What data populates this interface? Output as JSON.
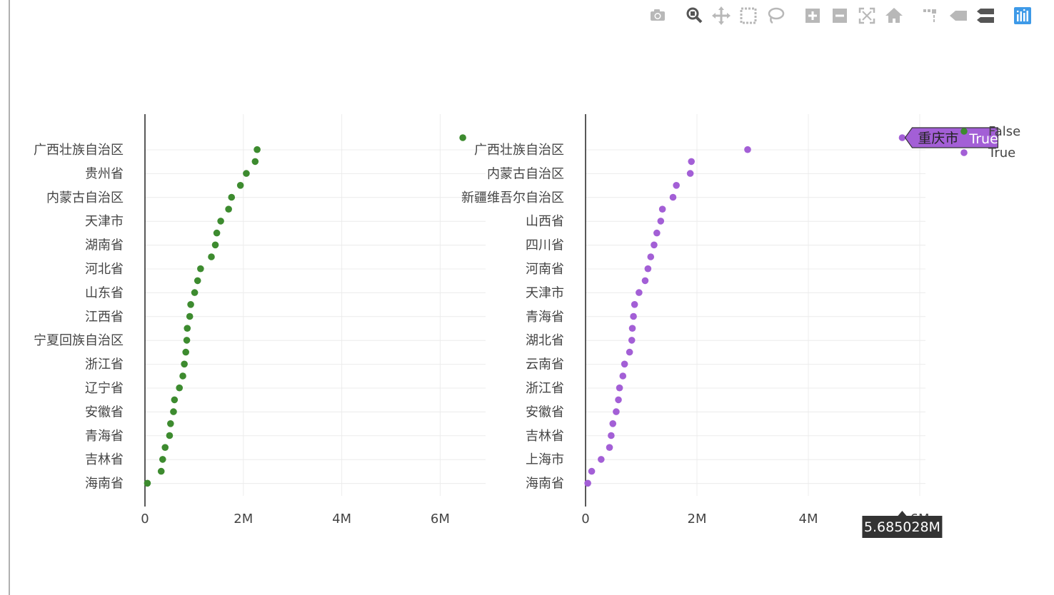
{
  "modebar": {
    "buttons": [
      {
        "name": "camera-icon",
        "title": "Download plot as a png"
      },
      {
        "name": "zoom-icon",
        "title": "Zoom"
      },
      {
        "name": "pan-icon",
        "title": "Pan"
      },
      {
        "name": "box-select-icon",
        "title": "Box Select"
      },
      {
        "name": "lasso-select-icon",
        "title": "Lasso Select"
      },
      {
        "name": "zoom-in-icon",
        "title": "Zoom in"
      },
      {
        "name": "zoom-out-icon",
        "title": "Zoom out"
      },
      {
        "name": "autoscale-icon",
        "title": "Autoscale"
      },
      {
        "name": "reset-axes-icon",
        "title": "Reset axes"
      },
      {
        "name": "toggle-spike-lines-icon",
        "title": "Toggle Spike Lines"
      },
      {
        "name": "hover-closest-icon",
        "title": "Show closest data on hover"
      },
      {
        "name": "hover-compare-icon",
        "title": "Compare data on hover"
      },
      {
        "name": "plotly-logo-icon",
        "title": "Produced with Plotly"
      }
    ]
  },
  "colors": {
    "series_false": "#3d8b2f",
    "series_true": "#a35fd6",
    "hover_tooltip_bg": "#333333"
  },
  "hover": {
    "label": "重庆市",
    "series": "True",
    "x_value_label": "5.685028M"
  },
  "chart_data": [
    {
      "type": "scatter",
      "panel": "left",
      "x_ticks": [
        "0",
        "2M",
        "4M",
        "6M"
      ],
      "xlim": [
        0,
        6900000
      ],
      "y_tick_labels": [
        "广西壮族自治区",
        "贵州省",
        "内蒙古自治区",
        "天津市",
        "湖南省",
        "河北省",
        "山东省",
        "江西省",
        "宁夏回族自治区",
        "浙江省",
        "辽宁省",
        "安徽省",
        "青海省",
        "吉林省",
        "海南省"
      ],
      "series": [
        {
          "name": "False",
          "color": "#3d8b2f",
          "points": [
            {
              "y": "",
              "x": 6460000
            },
            {
              "y": "广西壮族自治区",
              "x": 2280000
            },
            {
              "y": "",
              "x": 2240000
            },
            {
              "y": "贵州省",
              "x": 2060000
            },
            {
              "y": "",
              "x": 1940000
            },
            {
              "y": "内蒙古自治区",
              "x": 1760000
            },
            {
              "y": "",
              "x": 1700000
            },
            {
              "y": "天津市",
              "x": 1540000
            },
            {
              "y": "",
              "x": 1460000
            },
            {
              "y": "湖南省",
              "x": 1430000
            },
            {
              "y": "",
              "x": 1350000
            },
            {
              "y": "河北省",
              "x": 1130000
            },
            {
              "y": "",
              "x": 1070000
            },
            {
              "y": "山东省",
              "x": 1010000
            },
            {
              "y": "",
              "x": 930000
            },
            {
              "y": "江西省",
              "x": 910000
            },
            {
              "y": "",
              "x": 860000
            },
            {
              "y": "宁夏回族自治区",
              "x": 850000
            },
            {
              "y": "",
              "x": 830000
            },
            {
              "y": "浙江省",
              "x": 800000
            },
            {
              "y": "",
              "x": 770000
            },
            {
              "y": "辽宁省",
              "x": 700000
            },
            {
              "y": "",
              "x": 600000
            },
            {
              "y": "安徽省",
              "x": 580000
            },
            {
              "y": "",
              "x": 520000
            },
            {
              "y": "青海省",
              "x": 500000
            },
            {
              "y": "",
              "x": 410000
            },
            {
              "y": "吉林省",
              "x": 360000
            },
            {
              "y": "",
              "x": 330000
            },
            {
              "y": "海南省",
              "x": 50000
            }
          ]
        }
      ]
    },
    {
      "type": "scatter",
      "panel": "right",
      "x_ticks": [
        "0",
        "2M",
        "4M",
        "6M"
      ],
      "xlim": [
        0,
        6000000
      ],
      "y_tick_labels": [
        "广西壮族自治区",
        "内蒙古自治区",
        "新疆维吾尔自治区",
        "山西省",
        "四川省",
        "河南省",
        "天津市",
        "青海省",
        "湖北省",
        "云南省",
        "浙江省",
        "安徽省",
        "吉林省",
        "上海市",
        "海南省"
      ],
      "series": [
        {
          "name": "True",
          "color": "#a35fd6",
          "points": [
            {
              "y": "重庆市",
              "x": 5685028
            },
            {
              "y": "广西壮族自治区",
              "x": 2910000
            },
            {
              "y": "",
              "x": 1900000
            },
            {
              "y": "内蒙古自治区",
              "x": 1880000
            },
            {
              "y": "",
              "x": 1630000
            },
            {
              "y": "新疆维吾尔自治区",
              "x": 1570000
            },
            {
              "y": "",
              "x": 1380000
            },
            {
              "y": "山西省",
              "x": 1350000
            },
            {
              "y": "",
              "x": 1280000
            },
            {
              "y": "四川省",
              "x": 1230000
            },
            {
              "y": "",
              "x": 1170000
            },
            {
              "y": "河南省",
              "x": 1120000
            },
            {
              "y": "",
              "x": 1070000
            },
            {
              "y": "天津市",
              "x": 960000
            },
            {
              "y": "",
              "x": 880000
            },
            {
              "y": "青海省",
              "x": 860000
            },
            {
              "y": "",
              "x": 840000
            },
            {
              "y": "湖北省",
              "x": 830000
            },
            {
              "y": "",
              "x": 790000
            },
            {
              "y": "云南省",
              "x": 700000
            },
            {
              "y": "",
              "x": 670000
            },
            {
              "y": "浙江省",
              "x": 610000
            },
            {
              "y": "",
              "x": 590000
            },
            {
              "y": "安徽省",
              "x": 550000
            },
            {
              "y": "",
              "x": 490000
            },
            {
              "y": "吉林省",
              "x": 460000
            },
            {
              "y": "",
              "x": 430000
            },
            {
              "y": "上海市",
              "x": 280000
            },
            {
              "y": "",
              "x": 110000
            },
            {
              "y": "海南省",
              "x": 40000
            }
          ]
        }
      ]
    }
  ],
  "legend": {
    "placement": "top-right",
    "items": [
      {
        "label": "False",
        "color": "#3d8b2f"
      },
      {
        "label": "True",
        "color": "#a35fd6"
      }
    ]
  }
}
